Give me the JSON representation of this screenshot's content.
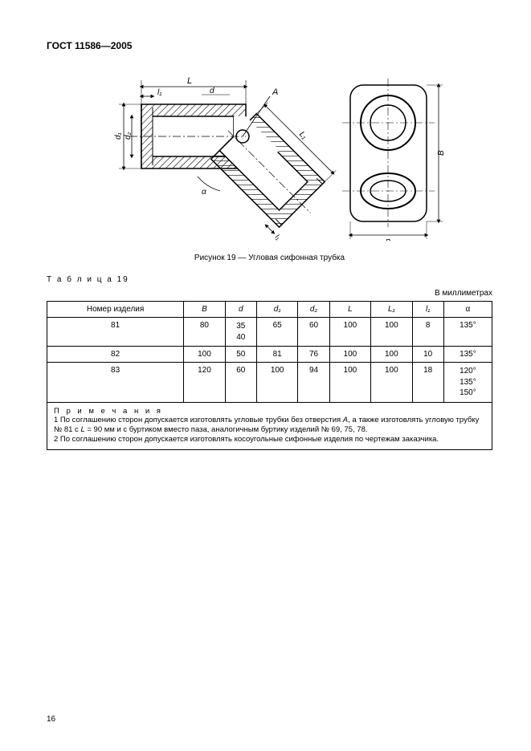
{
  "header": {
    "title": "ГОСТ 11586—2005"
  },
  "figure": {
    "caption": "Рисунок 19 — Угловая сифонная трубка",
    "labels": {
      "L": "L",
      "l1": "l₁",
      "d": "d",
      "A": "A",
      "d1": "d₁",
      "d2": "d₂",
      "L1": "L₁",
      "a": "a",
      "B": "B"
    },
    "colors": {
      "stroke": "#000000",
      "hatch": "#000000",
      "fill": "#ffffff"
    },
    "line_width": 1.5
  },
  "table": {
    "label": "Т а б л и ц а  19",
    "unit": "В миллиметрах",
    "columns": [
      "Номер изделия",
      "B",
      "d",
      "d₁",
      "d₂",
      "L",
      "L₁",
      "l₁",
      "α"
    ],
    "col_keys": [
      "num",
      "B",
      "d",
      "d1",
      "d2",
      "L",
      "L1",
      "l1",
      "alpha"
    ],
    "rows": [
      {
        "num": "81",
        "B": "80",
        "d": "35\n40",
        "d1": "65",
        "d2": "60",
        "L": "100",
        "L1": "100",
        "l1": "8",
        "alpha": "135°"
      },
      {
        "num": "82",
        "B": "100",
        "d": "50",
        "d1": "81",
        "d2": "76",
        "L": "100",
        "L1": "100",
        "l1": "10",
        "alpha": "135°"
      },
      {
        "num": "83",
        "B": "120",
        "d": "60",
        "d1": "100",
        "d2": "94",
        "L": "100",
        "L1": "100",
        "l1": "18",
        "alpha": "120°\n135°\n150°"
      }
    ]
  },
  "notes": {
    "title": "П р и м е ч а н и я",
    "line1_a": "1  По соглашению сторон допускается изготовлять угловые трубки без отверстия ",
    "line1_A": "A",
    "line1_b": ", а также изготовлять угловую трубку № 81 с ",
    "line1_L": "L",
    "line1_c": " = 90 мм и с буртиком вместо паза, аналогичным буртику изделий № 69, 75, 78.",
    "line2": "2  По соглашению сторон допускается изготовлять косоугольные сифонные изделия по чертежам заказчика."
  },
  "page_number": "16"
}
